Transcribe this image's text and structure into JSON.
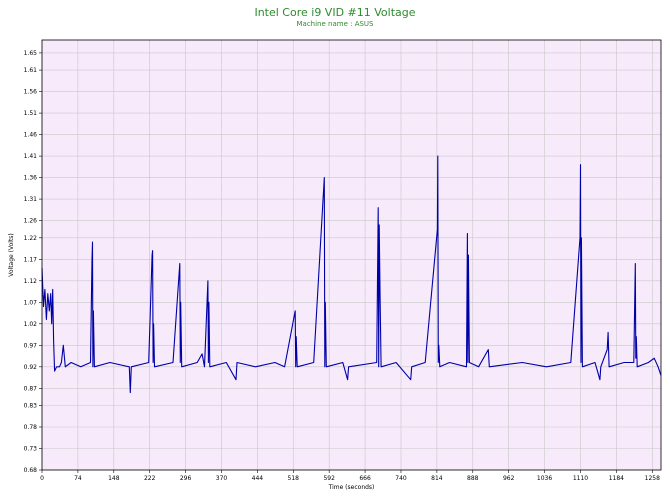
{
  "chart_data": {
    "type": "line",
    "title": "Intel Core i9 VID #11 Voltage",
    "subtitle": "Machine name : ASUS",
    "xlabel": "Time (seconds)",
    "ylabel": "Voltage (Volts)",
    "xlim": [
      0,
      1276
    ],
    "ylim": [
      0.68,
      1.68
    ],
    "x_ticks": [
      0,
      74,
      148,
      222,
      296,
      370,
      444,
      518,
      592,
      666,
      740,
      814,
      888,
      962,
      1036,
      1110,
      1184,
      1258
    ],
    "y_ticks": [
      0.68,
      0.73,
      0.78,
      0.83,
      0.87,
      0.92,
      0.97,
      1.02,
      1.07,
      1.12,
      1.17,
      1.22,
      1.26,
      1.31,
      1.36,
      1.41,
      1.46,
      1.51,
      1.56,
      1.61,
      1.65
    ],
    "grid": true,
    "colors": {
      "plot_bg": "#f7eafb",
      "grid": "#c8c8c8",
      "line": "#0000a8",
      "title": "#2e8b2e"
    },
    "baseline": 0.92,
    "series": [
      {
        "values": [
          [
            0,
            1.15
          ],
          [
            3,
            1.06
          ],
          [
            6,
            1.1
          ],
          [
            9,
            1.03
          ],
          [
            12,
            1.09
          ],
          [
            15,
            1.05
          ],
          [
            18,
            1.09
          ],
          [
            20,
            1.02
          ],
          [
            22,
            1.1
          ],
          [
            24,
            0.98
          ],
          [
            26,
            0.91
          ],
          [
            30,
            0.92
          ],
          [
            36,
            0.92
          ],
          [
            40,
            0.93
          ],
          [
            44,
            0.97
          ],
          [
            48,
            0.92
          ],
          [
            60,
            0.93
          ],
          [
            80,
            0.92
          ],
          [
            100,
            0.93
          ],
          [
            103,
            1.17
          ],
          [
            104,
            1.21
          ],
          [
            105,
            0.92
          ],
          [
            106,
            1.05
          ],
          [
            108,
            0.92
          ],
          [
            140,
            0.93
          ],
          [
            180,
            0.92
          ],
          [
            182,
            0.86
          ],
          [
            184,
            0.92
          ],
          [
            220,
            0.93
          ],
          [
            227,
            1.18
          ],
          [
            228,
            1.19
          ],
          [
            229,
            0.93
          ],
          [
            230,
            1.02
          ],
          [
            232,
            0.92
          ],
          [
            270,
            0.93
          ],
          [
            284,
            1.16
          ],
          [
            285,
            0.93
          ],
          [
            286,
            1.07
          ],
          [
            288,
            0.92
          ],
          [
            320,
            0.93
          ],
          [
            330,
            0.95
          ],
          [
            335,
            0.92
          ],
          [
            342,
            1.12
          ],
          [
            343,
            0.93
          ],
          [
            344,
            1.07
          ],
          [
            346,
            0.92
          ],
          [
            380,
            0.93
          ],
          [
            400,
            0.89
          ],
          [
            402,
            0.93
          ],
          [
            440,
            0.92
          ],
          [
            480,
            0.93
          ],
          [
            500,
            0.92
          ],
          [
            522,
            1.05
          ],
          [
            523,
            0.92
          ],
          [
            524,
            0.99
          ],
          [
            526,
            0.92
          ],
          [
            560,
            0.93
          ],
          [
            582,
            1.36
          ],
          [
            583,
            0.92
          ],
          [
            584,
            1.07
          ],
          [
            586,
            0.92
          ],
          [
            620,
            0.93
          ],
          [
            630,
            0.89
          ],
          [
            632,
            0.92
          ],
          [
            690,
            0.93
          ],
          [
            693,
            1.29
          ],
          [
            694,
            0.92
          ],
          [
            695,
            1.25
          ],
          [
            697,
            1.08
          ],
          [
            699,
            0.92
          ],
          [
            730,
            0.93
          ],
          [
            760,
            0.89
          ],
          [
            762,
            0.92
          ],
          [
            790,
            0.93
          ],
          [
            815,
            1.24
          ],
          [
            816,
            1.41
          ],
          [
            817,
            0.93
          ],
          [
            818,
            0.97
          ],
          [
            820,
            0.92
          ],
          [
            840,
            0.93
          ],
          [
            875,
            0.92
          ],
          [
            877,
            1.23
          ],
          [
            878,
            0.93
          ],
          [
            879,
            1.18
          ],
          [
            881,
            0.93
          ],
          [
            900,
            0.92
          ],
          [
            920,
            0.96
          ],
          [
            922,
            0.92
          ],
          [
            990,
            0.93
          ],
          [
            1040,
            0.92
          ],
          [
            1090,
            0.93
          ],
          [
            1109,
            1.22
          ],
          [
            1110,
            1.39
          ],
          [
            1111,
            0.93
          ],
          [
            1112,
            1.22
          ],
          [
            1114,
            0.92
          ],
          [
            1140,
            0.93
          ],
          [
            1150,
            0.89
          ],
          [
            1152,
            0.92
          ],
          [
            1165,
            0.96
          ],
          [
            1167,
            1.0
          ],
          [
            1169,
            0.92
          ],
          [
            1200,
            0.93
          ],
          [
            1220,
            0.93
          ],
          [
            1223,
            1.16
          ],
          [
            1224,
            0.94
          ],
          [
            1225,
            0.99
          ],
          [
            1227,
            0.92
          ],
          [
            1250,
            0.93
          ],
          [
            1262,
            0.94
          ],
          [
            1270,
            0.92
          ],
          [
            1276,
            0.9
          ]
        ]
      }
    ]
  }
}
